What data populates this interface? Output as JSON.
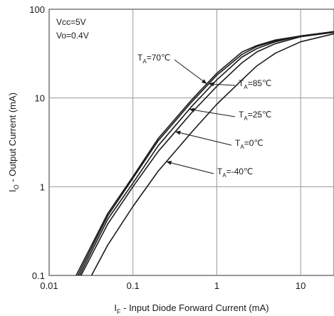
{
  "chart_data": {
    "type": "line",
    "x_scale": "log",
    "y_scale": "log",
    "xlim": [
      0.01,
      25
    ],
    "ylim": [
      0.1,
      100
    ],
    "grid": true,
    "xlabel": {
      "prefix": "I",
      "sub": "F",
      "rest": " - Input Diode Forward Current (mA)"
    },
    "ylabel": {
      "prefix": "I",
      "sub": "O",
      "rest": " - Output Current (mA)"
    },
    "x_ticks": [
      {
        "value": 0.01,
        "label": "0.01"
      },
      {
        "value": 0.1,
        "label": "0.1"
      },
      {
        "value": 1,
        "label": "1"
      },
      {
        "value": 10,
        "label": "10"
      }
    ],
    "y_ticks": [
      {
        "value": 0.1,
        "label": "0.1"
      },
      {
        "value": 1,
        "label": "1"
      },
      {
        "value": 10,
        "label": "10"
      },
      {
        "value": 100,
        "label": "100"
      }
    ],
    "conditions": [
      "Vcc=5V",
      "Vo=0.4V"
    ],
    "series": [
      {
        "name": "TA=70℃",
        "x": [
          0.021,
          0.05,
          0.1,
          0.2,
          0.5,
          1,
          2,
          3,
          5,
          10,
          25
        ],
        "y": [
          0.1,
          0.5,
          1.3,
          3.5,
          9.5,
          19,
          33,
          39,
          45,
          50,
          56
        ]
      },
      {
        "name": "TA=85℃",
        "x": [
          0.022,
          0.05,
          0.1,
          0.2,
          0.5,
          1,
          2,
          3,
          5,
          10,
          25
        ],
        "y": [
          0.1,
          0.47,
          1.25,
          3.3,
          9,
          18,
          31,
          38,
          44,
          50,
          56
        ]
      },
      {
        "name": "TA=25℃",
        "x": [
          0.023,
          0.05,
          0.1,
          0.2,
          0.5,
          1,
          2,
          3,
          5,
          10,
          25
        ],
        "y": [
          0.1,
          0.43,
          1.1,
          2.9,
          8,
          16,
          29,
          36,
          43,
          50,
          56
        ]
      },
      {
        "name": "TA=0℃",
        "x": [
          0.024,
          0.05,
          0.1,
          0.2,
          0.5,
          1,
          2,
          3,
          5,
          10,
          25
        ],
        "y": [
          0.1,
          0.38,
          1.0,
          2.5,
          6.8,
          13.5,
          25,
          33,
          41,
          49,
          55
        ]
      },
      {
        "name": "TA=-40℃",
        "x": [
          0.032,
          0.05,
          0.1,
          0.2,
          0.5,
          1,
          2,
          3,
          5,
          10,
          25
        ],
        "y": [
          0.1,
          0.22,
          0.6,
          1.5,
          4.1,
          8.5,
          16,
          23,
          32,
          43,
          53
        ]
      }
    ],
    "annotations": [
      {
        "series": "TA=70℃",
        "pre": "T",
        "sub": "A",
        "post": "=70℃",
        "at_x": 0.76
      },
      {
        "series": "TA=85℃",
        "pre": "T",
        "sub": "A",
        "post": "=85℃",
        "at_x": 0.8
      },
      {
        "series": "TA=25℃",
        "pre": "T",
        "sub": "A",
        "post": "=25℃",
        "at_x": 0.47
      },
      {
        "series": "TA=0℃",
        "pre": "T",
        "sub": "A",
        "post": "=0℃",
        "at_x": 0.32
      },
      {
        "series": "TA=-40℃",
        "pre": "T",
        "sub": "A",
        "post": "=-40℃",
        "at_x": 0.25
      }
    ]
  }
}
